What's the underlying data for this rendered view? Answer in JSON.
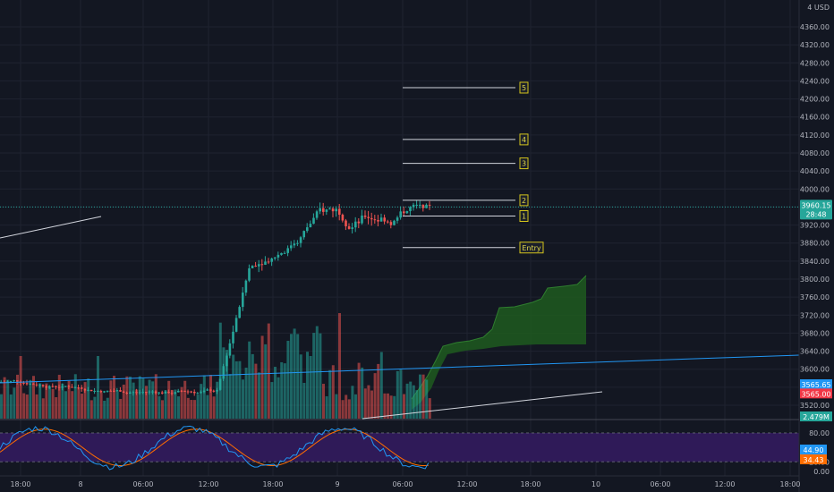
{
  "chart_data": {
    "type": "candlestick",
    "currency_label": "USD",
    "currency_label_prefix": "4",
    "y_ticks": [
      3520,
      3560,
      3600,
      3640,
      3680,
      3720,
      3760,
      3800,
      3840,
      3880,
      3920,
      3960,
      4000,
      4040,
      4080,
      4120,
      4160,
      4200,
      4240,
      4280,
      4320,
      4360
    ],
    "y_tick_labels": [
      "3520.00",
      "3560.00",
      "3600.00",
      "3640.00",
      "3680.00",
      "3720.00",
      "3760.00",
      "3800.00",
      "3840.00",
      "3880.00",
      "3920.00",
      "3960.00",
      "4000.00",
      "4040.00",
      "4080.00",
      "4120.00",
      "4160.00",
      "4200.00",
      "4240.00",
      "4280.00",
      "4320.00",
      "4360.00"
    ],
    "ylim": [
      3500,
      4400
    ],
    "x_tick_labels": [
      "18:00",
      "8",
      "06:00",
      "12:00",
      "18:00",
      "9",
      "06:00",
      "12:00",
      "18:00",
      "10",
      "06:00",
      "12:00",
      "18:00"
    ],
    "current_price": {
      "value": 3960.15,
      "label": "3960.15",
      "countdown": "28:48",
      "color": "#26a69a"
    },
    "price_badges": [
      {
        "label": "3565.65",
        "color": "#2196f3",
        "value": 3565.65
      },
      {
        "label": "3565.00",
        "color": "#f23645",
        "value": 3565.0
      },
      {
        "label": "2.479M",
        "color": "#26a69a",
        "value": 3505
      }
    ],
    "targets": [
      {
        "label": "Entry",
        "price": 3870
      },
      {
        "label": "1",
        "price": 3940
      },
      {
        "label": "2",
        "price": 3975
      },
      {
        "label": "3",
        "price": 4057
      },
      {
        "label": "4",
        "price": 4110
      },
      {
        "label": "5",
        "price": 4225
      }
    ],
    "stoch": {
      "y_ticks": [
        0,
        20,
        80
      ],
      "y_tick_labels": [
        "0.00",
        "20.00",
        "80.00"
      ],
      "k_label": "44.90",
      "d_label": "34.43",
      "k_color": "#2196f3",
      "d_color": "#ff6d00"
    },
    "colors": {
      "up": "#26a69a",
      "down": "#ef5350",
      "cloud": "#1e5a1e",
      "stoch_band": "#2f1a58"
    }
  }
}
